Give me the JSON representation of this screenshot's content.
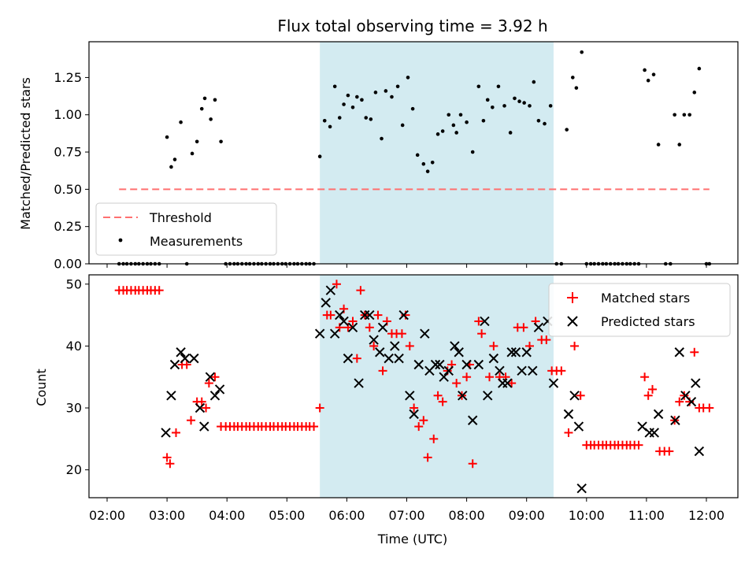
{
  "chart_data": {
    "type": "scatter",
    "title": "Flux total observing time = 3.92 h",
    "xlabel": "Time (UTC)",
    "x_ticks": [
      "02:00",
      "03:00",
      "04:00",
      "05:00",
      "06:00",
      "07:00",
      "08:00",
      "09:00",
      "10:00",
      "11:00",
      "12:00"
    ],
    "shaded_region": {
      "x": [
        5.55,
        9.45
      ],
      "color": "#d3ebf1"
    },
    "colors": {
      "threshold": "#ff7070",
      "matched": "#ff0000",
      "predicted": "#000000",
      "measurement": "#000000"
    },
    "top": {
      "ylabel": "Matched/Predicted stars",
      "ylim": [
        0,
        1.49
      ],
      "y_ticks": [
        "0.00",
        "0.25",
        "0.50",
        "0.75",
        "1.00",
        "1.25"
      ],
      "legend": [
        "Threshold",
        "Measurements"
      ],
      "threshold": {
        "x": [
          2.2,
          12.05
        ],
        "y": 0.5
      },
      "measurements": [
        [
          2.2,
          0
        ],
        [
          2.27,
          0
        ],
        [
          2.33,
          0
        ],
        [
          2.4,
          0
        ],
        [
          2.47,
          0
        ],
        [
          2.53,
          0
        ],
        [
          2.6,
          0
        ],
        [
          2.67,
          0
        ],
        [
          2.73,
          0
        ],
        [
          2.8,
          0
        ],
        [
          2.87,
          0
        ],
        [
          3.0,
          0.85
        ],
        [
          3.07,
          0.65
        ],
        [
          3.13,
          0.7
        ],
        [
          3.23,
          0.95
        ],
        [
          3.33,
          0
        ],
        [
          3.42,
          0.74
        ],
        [
          3.5,
          0.82
        ],
        [
          3.58,
          1.04
        ],
        [
          3.63,
          1.11
        ],
        [
          3.73,
          0.97
        ],
        [
          3.8,
          1.1
        ],
        [
          3.9,
          0.82
        ],
        [
          3.98,
          0
        ],
        [
          4.05,
          0
        ],
        [
          4.12,
          0
        ],
        [
          4.18,
          0
        ],
        [
          4.25,
          0
        ],
        [
          4.32,
          0
        ],
        [
          4.38,
          0
        ],
        [
          4.45,
          0
        ],
        [
          4.52,
          0
        ],
        [
          4.58,
          0
        ],
        [
          4.65,
          0
        ],
        [
          4.72,
          0
        ],
        [
          4.78,
          0
        ],
        [
          4.85,
          0
        ],
        [
          4.92,
          0
        ],
        [
          4.98,
          0
        ],
        [
          5.05,
          0
        ],
        [
          5.12,
          0
        ],
        [
          5.18,
          0
        ],
        [
          5.25,
          0
        ],
        [
          5.32,
          0
        ],
        [
          5.38,
          0
        ],
        [
          5.45,
          0
        ],
        [
          5.55,
          0.72
        ],
        [
          5.63,
          0.96
        ],
        [
          5.72,
          0.92
        ],
        [
          5.8,
          1.19
        ],
        [
          5.88,
          0.98
        ],
        [
          5.95,
          1.07
        ],
        [
          6.02,
          1.13
        ],
        [
          6.1,
          1.05
        ],
        [
          6.17,
          1.12
        ],
        [
          6.25,
          1.1
        ],
        [
          6.32,
          0.98
        ],
        [
          6.4,
          0.97
        ],
        [
          6.48,
          1.15
        ],
        [
          6.58,
          0.84
        ],
        [
          6.65,
          1.16
        ],
        [
          6.75,
          1.12
        ],
        [
          6.85,
          1.19
        ],
        [
          6.93,
          0.93
        ],
        [
          7.02,
          1.25
        ],
        [
          7.1,
          1.04
        ],
        [
          7.18,
          0.73
        ],
        [
          7.28,
          0.67
        ],
        [
          7.35,
          0.62
        ],
        [
          7.43,
          0.68
        ],
        [
          7.52,
          0.87
        ],
        [
          7.6,
          0.89
        ],
        [
          7.7,
          1.0
        ],
        [
          7.78,
          0.93
        ],
        [
          7.83,
          0.88
        ],
        [
          7.9,
          1.0
        ],
        [
          8.0,
          0.95
        ],
        [
          8.1,
          0.75
        ],
        [
          8.2,
          1.19
        ],
        [
          8.28,
          0.96
        ],
        [
          8.35,
          1.1
        ],
        [
          8.43,
          1.05
        ],
        [
          8.53,
          1.19
        ],
        [
          8.63,
          1.06
        ],
        [
          8.73,
          0.88
        ],
        [
          8.8,
          1.11
        ],
        [
          8.88,
          1.09
        ],
        [
          8.96,
          1.08
        ],
        [
          9.05,
          1.06
        ],
        [
          9.12,
          1.22
        ],
        [
          9.2,
          0.96
        ],
        [
          9.3,
          0.94
        ],
        [
          9.4,
          1.06
        ],
        [
          9.5,
          0
        ],
        [
          9.58,
          0
        ],
        [
          9.67,
          0.9
        ],
        [
          9.77,
          1.25
        ],
        [
          9.83,
          1.18
        ],
        [
          9.92,
          1.42
        ],
        [
          10.0,
          0
        ],
        [
          10.07,
          0
        ],
        [
          10.13,
          0
        ],
        [
          10.2,
          0
        ],
        [
          10.27,
          0
        ],
        [
          10.33,
          0
        ],
        [
          10.4,
          0
        ],
        [
          10.47,
          0
        ],
        [
          10.53,
          0
        ],
        [
          10.6,
          0
        ],
        [
          10.67,
          0
        ],
        [
          10.73,
          0
        ],
        [
          10.8,
          0
        ],
        [
          10.87,
          0
        ],
        [
          10.97,
          1.3
        ],
        [
          11.03,
          1.23
        ],
        [
          11.12,
          1.27
        ],
        [
          11.2,
          0.8
        ],
        [
          11.32,
          0
        ],
        [
          11.4,
          0
        ],
        [
          11.47,
          1.0
        ],
        [
          11.55,
          0.8
        ],
        [
          11.63,
          1.0
        ],
        [
          11.72,
          1.0
        ],
        [
          11.8,
          1.15
        ],
        [
          11.88,
          1.31
        ],
        [
          12.0,
          0
        ],
        [
          12.05,
          0
        ]
      ]
    },
    "bottom": {
      "ylabel": "Count",
      "ylim": [
        15.5,
        51.5
      ],
      "y_ticks": [
        "20",
        "30",
        "40",
        "50"
      ],
      "legend": [
        "Matched stars",
        "Predicted stars"
      ],
      "matched": [
        [
          2.2,
          49
        ],
        [
          2.27,
          49
        ],
        [
          2.33,
          49
        ],
        [
          2.4,
          49
        ],
        [
          2.47,
          49
        ],
        [
          2.53,
          49
        ],
        [
          2.6,
          49
        ],
        [
          2.67,
          49
        ],
        [
          2.73,
          49
        ],
        [
          2.8,
          49
        ],
        [
          2.87,
          49
        ],
        [
          3.0,
          22
        ],
        [
          3.05,
          21
        ],
        [
          3.15,
          26
        ],
        [
          3.25,
          37
        ],
        [
          3.33,
          37
        ],
        [
          3.4,
          28
        ],
        [
          3.5,
          31
        ],
        [
          3.58,
          31
        ],
        [
          3.65,
          30
        ],
        [
          3.7,
          34
        ],
        [
          3.8,
          35
        ],
        [
          3.9,
          27
        ],
        [
          3.98,
          27
        ],
        [
          4.05,
          27
        ],
        [
          4.12,
          27
        ],
        [
          4.18,
          27
        ],
        [
          4.25,
          27
        ],
        [
          4.32,
          27
        ],
        [
          4.38,
          27
        ],
        [
          4.45,
          27
        ],
        [
          4.52,
          27
        ],
        [
          4.58,
          27
        ],
        [
          4.65,
          27
        ],
        [
          4.72,
          27
        ],
        [
          4.78,
          27
        ],
        [
          4.85,
          27
        ],
        [
          4.92,
          27
        ],
        [
          4.98,
          27
        ],
        [
          5.05,
          27
        ],
        [
          5.12,
          27
        ],
        [
          5.18,
          27
        ],
        [
          5.25,
          27
        ],
        [
          5.32,
          27
        ],
        [
          5.38,
          27
        ],
        [
          5.45,
          27
        ],
        [
          5.55,
          30
        ],
        [
          5.67,
          45
        ],
        [
          5.73,
          45
        ],
        [
          5.83,
          50
        ],
        [
          5.88,
          43
        ],
        [
          5.95,
          46
        ],
        [
          6.02,
          43
        ],
        [
          6.1,
          44
        ],
        [
          6.17,
          38
        ],
        [
          6.23,
          49
        ],
        [
          6.3,
          45
        ],
        [
          6.38,
          43
        ],
        [
          6.45,
          40
        ],
        [
          6.52,
          45
        ],
        [
          6.6,
          36
        ],
        [
          6.67,
          44
        ],
        [
          6.75,
          42
        ],
        [
          6.83,
          42
        ],
        [
          6.92,
          42
        ],
        [
          6.98,
          45
        ],
        [
          7.05,
          40
        ],
        [
          7.12,
          30
        ],
        [
          7.2,
          27
        ],
        [
          7.28,
          28
        ],
        [
          7.35,
          22
        ],
        [
          7.45,
          25
        ],
        [
          7.52,
          32
        ],
        [
          7.6,
          31
        ],
        [
          7.68,
          36
        ],
        [
          7.75,
          37
        ],
        [
          7.83,
          34
        ],
        [
          7.92,
          32
        ],
        [
          8.0,
          35
        ],
        [
          8.05,
          37
        ],
        [
          8.1,
          21
        ],
        [
          8.2,
          44
        ],
        [
          8.25,
          42
        ],
        [
          8.38,
          35
        ],
        [
          8.45,
          40
        ],
        [
          8.55,
          35
        ],
        [
          8.65,
          35
        ],
        [
          8.75,
          34
        ],
        [
          8.85,
          43
        ],
        [
          8.95,
          43
        ],
        [
          9.05,
          40
        ],
        [
          9.15,
          44
        ],
        [
          9.25,
          41
        ],
        [
          9.33,
          41
        ],
        [
          9.42,
          36
        ],
        [
          9.5,
          36
        ],
        [
          9.58,
          36
        ],
        [
          9.7,
          26
        ],
        [
          9.8,
          40
        ],
        [
          9.9,
          32
        ],
        [
          10.0,
          24
        ],
        [
          10.07,
          24
        ],
        [
          10.13,
          24
        ],
        [
          10.2,
          24
        ],
        [
          10.27,
          24
        ],
        [
          10.33,
          24
        ],
        [
          10.4,
          24
        ],
        [
          10.47,
          24
        ],
        [
          10.53,
          24
        ],
        [
          10.6,
          24
        ],
        [
          10.67,
          24
        ],
        [
          10.73,
          24
        ],
        [
          10.8,
          24
        ],
        [
          10.87,
          24
        ],
        [
          10.97,
          35
        ],
        [
          11.03,
          32
        ],
        [
          11.1,
          33
        ],
        [
          11.22,
          23
        ],
        [
          11.3,
          23
        ],
        [
          11.38,
          23
        ],
        [
          11.47,
          28
        ],
        [
          11.55,
          31
        ],
        [
          11.63,
          32
        ],
        [
          11.72,
          31
        ],
        [
          11.8,
          39
        ],
        [
          11.88,
          30
        ],
        [
          11.95,
          30
        ],
        [
          12.05,
          30
        ]
      ],
      "predicted": [
        [
          2.98,
          26
        ],
        [
          3.07,
          32
        ],
        [
          3.13,
          37
        ],
        [
          3.23,
          39
        ],
        [
          3.3,
          38
        ],
        [
          3.45,
          38
        ],
        [
          3.55,
          30
        ],
        [
          3.62,
          27
        ],
        [
          3.72,
          35
        ],
        [
          3.8,
          32
        ],
        [
          3.88,
          33
        ],
        [
          5.55,
          42
        ],
        [
          5.65,
          47
        ],
        [
          5.73,
          49
        ],
        [
          5.8,
          42
        ],
        [
          5.88,
          45
        ],
        [
          5.95,
          44
        ],
        [
          6.02,
          38
        ],
        [
          6.1,
          43
        ],
        [
          6.2,
          34
        ],
        [
          6.3,
          45
        ],
        [
          6.38,
          45
        ],
        [
          6.45,
          41
        ],
        [
          6.55,
          39
        ],
        [
          6.6,
          43
        ],
        [
          6.7,
          38
        ],
        [
          6.8,
          40
        ],
        [
          6.87,
          38
        ],
        [
          6.95,
          45
        ],
        [
          7.05,
          32
        ],
        [
          7.12,
          29
        ],
        [
          7.2,
          37
        ],
        [
          7.3,
          42
        ],
        [
          7.38,
          36
        ],
        [
          7.48,
          37
        ],
        [
          7.55,
          37
        ],
        [
          7.62,
          35
        ],
        [
          7.7,
          36
        ],
        [
          7.8,
          40
        ],
        [
          7.87,
          39
        ],
        [
          7.93,
          32
        ],
        [
          8.0,
          37
        ],
        [
          8.1,
          28
        ],
        [
          8.2,
          37
        ],
        [
          8.3,
          44
        ],
        [
          8.35,
          32
        ],
        [
          8.45,
          38
        ],
        [
          8.55,
          36
        ],
        [
          8.6,
          34
        ],
        [
          8.68,
          34
        ],
        [
          8.75,
          39
        ],
        [
          8.82,
          39
        ],
        [
          8.92,
          36
        ],
        [
          9.0,
          39
        ],
        [
          9.1,
          36
        ],
        [
          9.2,
          43
        ],
        [
          9.35,
          44
        ],
        [
          9.45,
          34
        ],
        [
          9.7,
          29
        ],
        [
          9.8,
          32
        ],
        [
          9.87,
          27
        ],
        [
          9.92,
          17
        ],
        [
          10.93,
          27
        ],
        [
          11.05,
          26
        ],
        [
          11.13,
          26
        ],
        [
          11.2,
          29
        ],
        [
          11.48,
          28
        ],
        [
          11.55,
          39
        ],
        [
          11.65,
          32
        ],
        [
          11.75,
          31
        ],
        [
          11.82,
          34
        ],
        [
          11.88,
          23
        ]
      ]
    }
  }
}
